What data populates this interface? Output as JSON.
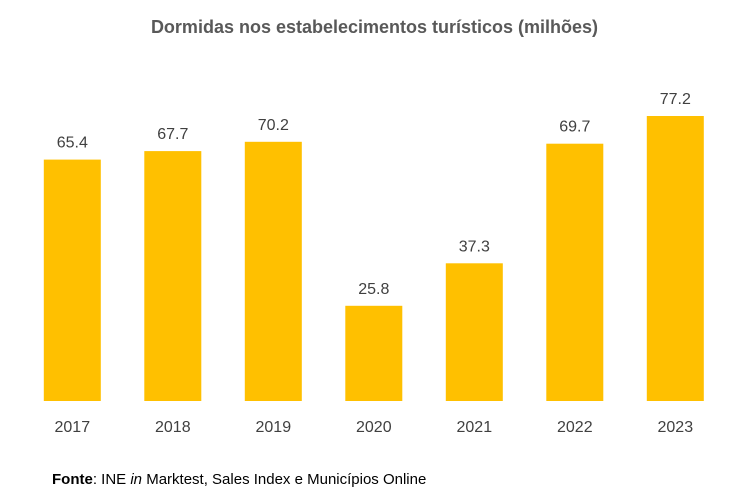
{
  "chart_data": {
    "type": "bar",
    "title": "Dormidas nos estabelecimentos turísticos (milhões)",
    "categories": [
      "2017",
      "2018",
      "2019",
      "2020",
      "2021",
      "2022",
      "2023"
    ],
    "values": [
      65.4,
      67.7,
      70.2,
      25.8,
      37.3,
      69.7,
      77.2
    ],
    "value_labels": [
      "65.4",
      "67.7",
      "70.2",
      "25.8",
      "37.3",
      "69.7",
      "77.2"
    ],
    "ylim": [
      0,
      77.2
    ],
    "grid": false,
    "bar_color": "#FFC000"
  },
  "source": {
    "label": "Fonte",
    "separator": ": INE ",
    "italic": "in",
    "rest": " Marktest, Sales Index e Municípios Online"
  }
}
